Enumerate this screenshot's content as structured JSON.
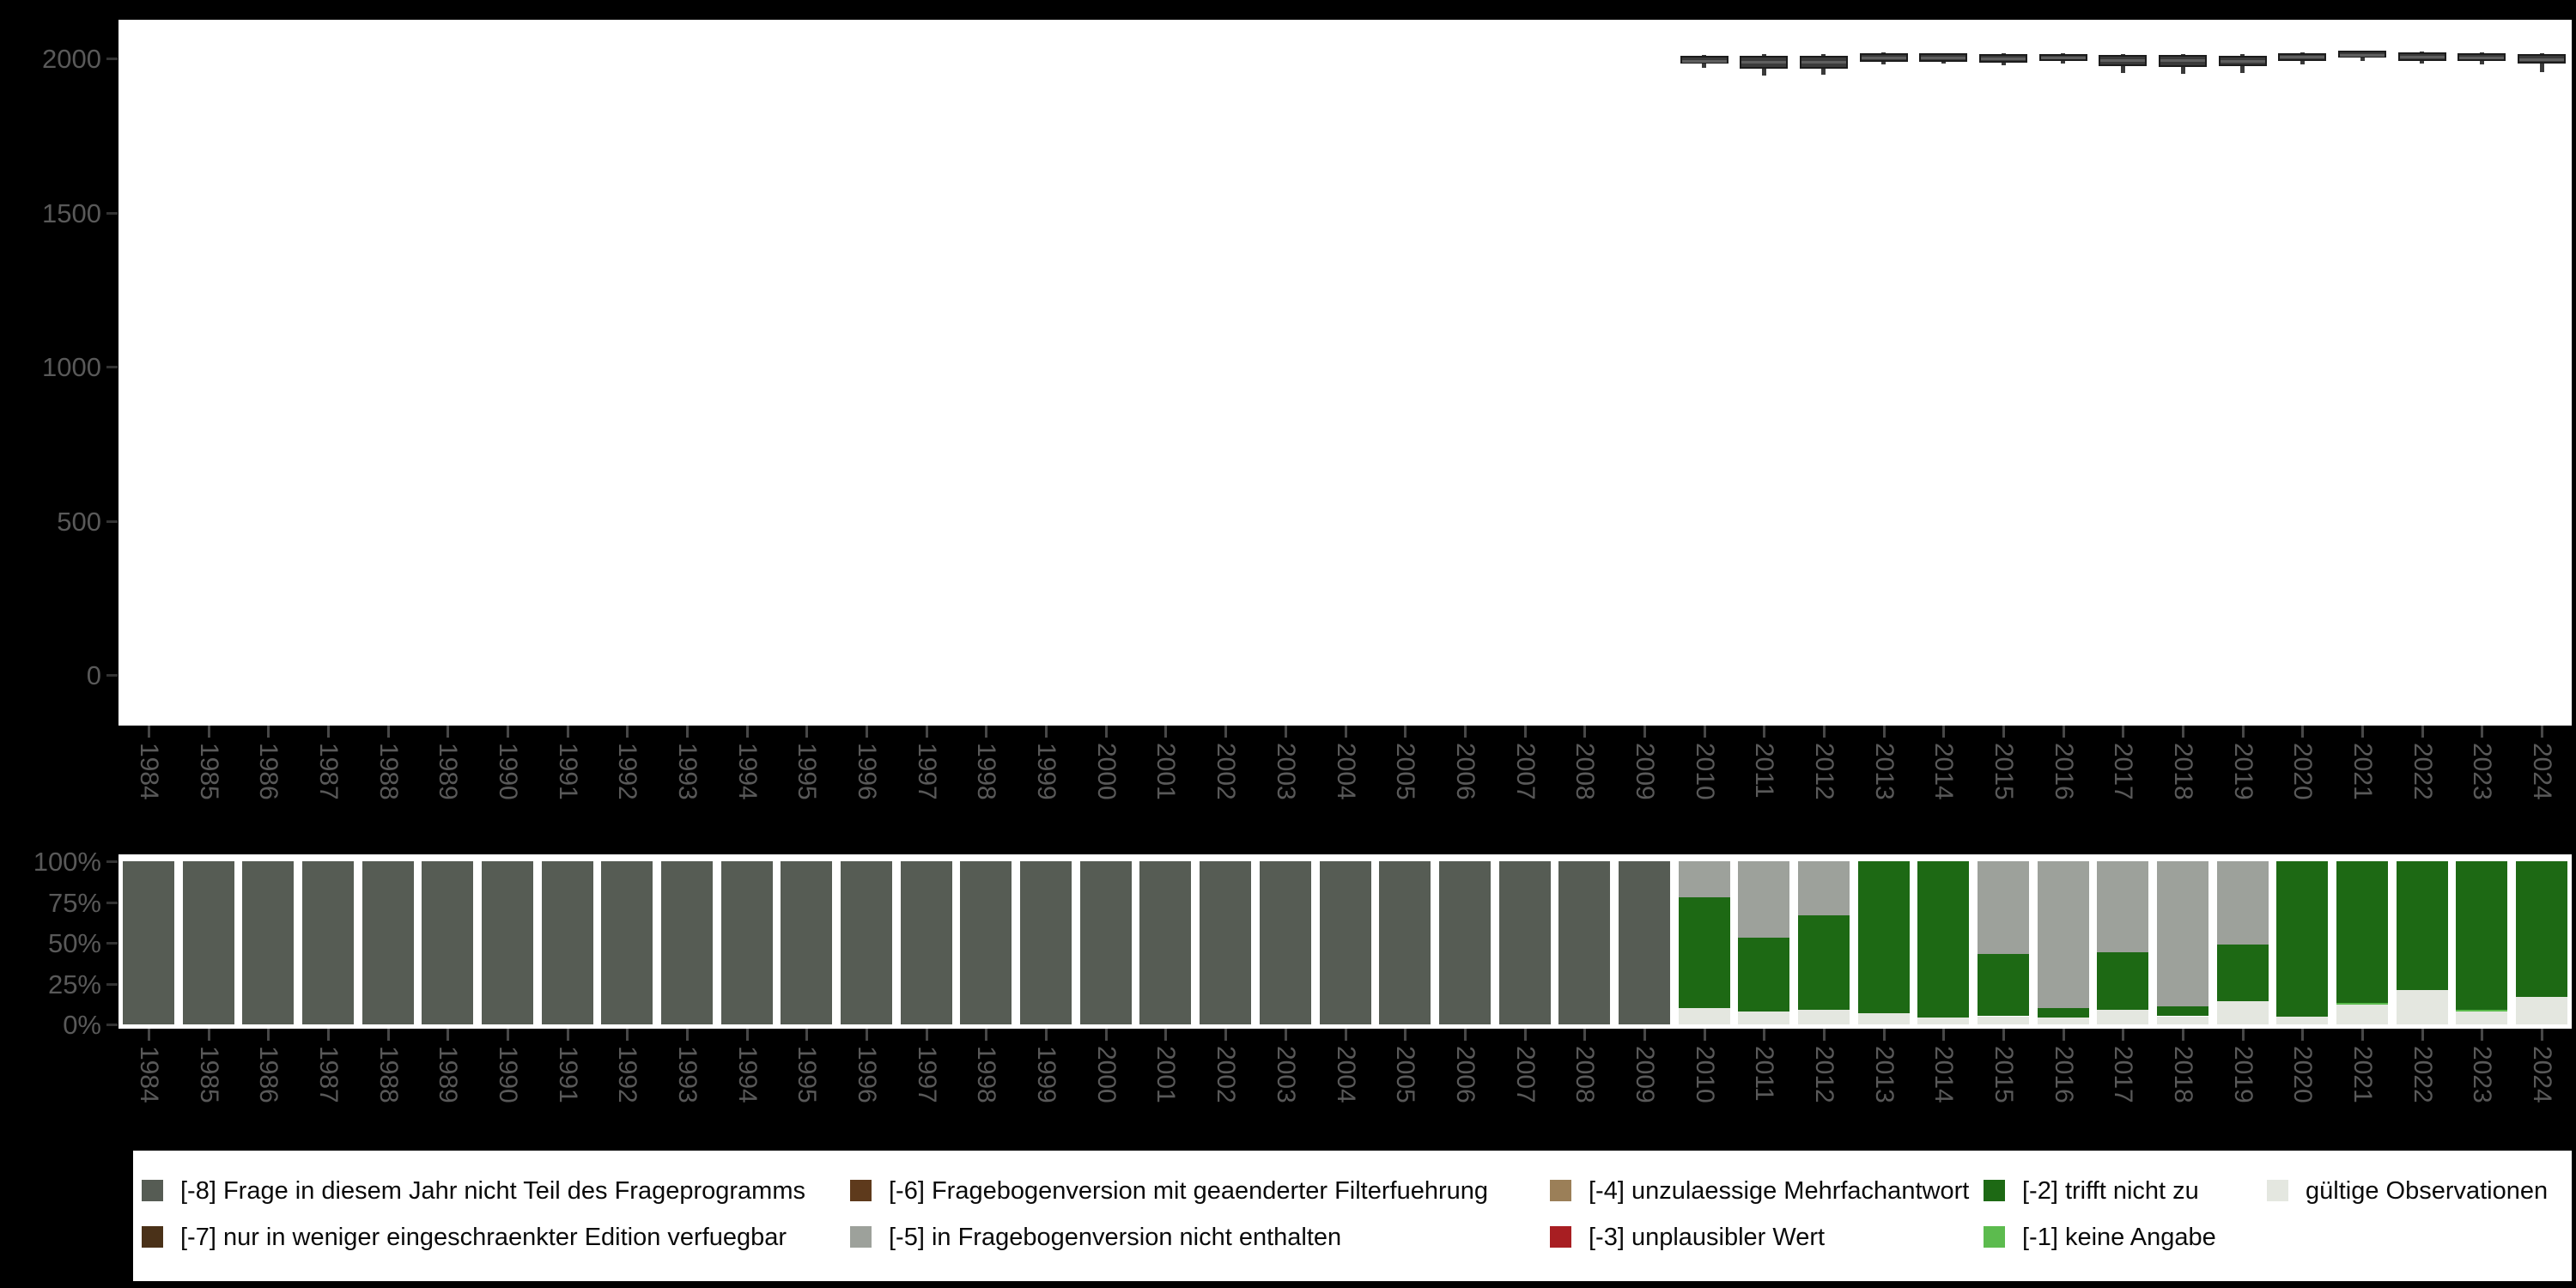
{
  "colors": {
    "background": "#000000",
    "panel": "#ffffff",
    "axis_text": "#595959",
    "tick_mark": "#474747",
    "boxplot_fill": "#3a3a3a",
    "boxplot_border": "#1c1c1c",
    "boxplot_median": "#5f5f5f",
    "m8": "#565c54",
    "m7": "#4a3118",
    "m6": "#5e3a1c",
    "m5": "#9da19b",
    "m4": "#9b7f58",
    "m3": "#a81e22",
    "m2": "#1d6914",
    "m1": "#5cbb4e",
    "gueltige": "#e4e7e0"
  },
  "chart_data": [
    {
      "type": "boxplot",
      "title": "",
      "xlabel": "",
      "ylabel": "",
      "ylim": [
        -165,
        2125
      ],
      "grid": false,
      "ytick_labels": [
        "0",
        "500",
        "1000",
        "1500",
        "2000"
      ],
      "ytick_values": [
        0,
        500,
        1000,
        1500,
        2000
      ],
      "categories": [
        1984,
        1985,
        1986,
        1987,
        1988,
        1989,
        1990,
        1991,
        1992,
        1993,
        1994,
        1995,
        1996,
        1997,
        1998,
        1999,
        2000,
        2001,
        2002,
        2003,
        2004,
        2005,
        2006,
        2007,
        2008,
        2009,
        2010,
        2011,
        2012,
        2013,
        2014,
        2015,
        2016,
        2017,
        2018,
        2019,
        2020,
        2021,
        2022,
        2023,
        2024
      ],
      "boxplots": [
        {
          "year": 2010,
          "low": 1970,
          "q1": 1982,
          "median": 1993,
          "q3": 2008,
          "high": 2012
        },
        {
          "year": 2011,
          "low": 1944,
          "q1": 1966,
          "median": 1988,
          "q3": 2008,
          "high": 2015
        },
        {
          "year": 2012,
          "low": 1946,
          "q1": 1966,
          "median": 1989,
          "q3": 2008,
          "high": 2013
        },
        {
          "year": 2013,
          "low": 1980,
          "q1": 1990,
          "median": 2004,
          "q3": 2017,
          "high": 2019
        },
        {
          "year": 2014,
          "low": 1982,
          "q1": 1990,
          "median": 2003,
          "q3": 2016,
          "high": 2018
        },
        {
          "year": 2015,
          "low": 1979,
          "q1": 1987,
          "median": 2001,
          "q3": 2015,
          "high": 2017
        },
        {
          "year": 2016,
          "low": 1983,
          "q1": 1991,
          "median": 2003,
          "q3": 2015,
          "high": 2017
        },
        {
          "year": 2017,
          "low": 1952,
          "q1": 1976,
          "median": 1995,
          "q3": 2011,
          "high": 2013
        },
        {
          "year": 2018,
          "low": 1950,
          "q1": 1972,
          "median": 1994,
          "q3": 2012,
          "high": 2014
        },
        {
          "year": 2019,
          "low": 1952,
          "q1": 1976,
          "median": 1992,
          "q3": 2008,
          "high": 2014
        },
        {
          "year": 2020,
          "low": 1980,
          "q1": 1992,
          "median": 2005,
          "q3": 2018,
          "high": 2020
        },
        {
          "year": 2021,
          "low": 1992,
          "q1": 2002,
          "median": 2012,
          "q3": 2024,
          "high": 2026
        },
        {
          "year": 2022,
          "low": 1982,
          "q1": 1993,
          "median": 2006,
          "q3": 2019,
          "high": 2021
        },
        {
          "year": 2023,
          "low": 1980,
          "q1": 1991,
          "median": 2004,
          "q3": 2017,
          "high": 2019
        },
        {
          "year": 2024,
          "low": 1955,
          "q1": 1983,
          "median": 1998,
          "q3": 2014,
          "high": 2016
        }
      ]
    },
    {
      "type": "bar",
      "subtype": "stacked-100-percent",
      "title": "",
      "xlabel": "",
      "ylabel": "",
      "grid": false,
      "ytick_labels": [
        "0%",
        "25%",
        "50%",
        "75%",
        "100%"
      ],
      "ytick_values": [
        0,
        25,
        50,
        75,
        100
      ],
      "categories": [
        1984,
        1985,
        1986,
        1987,
        1988,
        1989,
        1990,
        1991,
        1992,
        1993,
        1994,
        1995,
        1996,
        1997,
        1998,
        1999,
        2000,
        2001,
        2002,
        2003,
        2004,
        2005,
        2006,
        2007,
        2008,
        2009,
        2010,
        2011,
        2012,
        2013,
        2014,
        2015,
        2016,
        2017,
        2018,
        2019,
        2020,
        2021,
        2022,
        2023,
        2024
      ],
      "stack_order_bottom_to_top": [
        "gueltige",
        "m1",
        "m2",
        "m5",
        "m8"
      ],
      "bars": [
        {
          "year": 1984,
          "gueltige": 0,
          "m1": 0,
          "m2": 0,
          "m5": 0,
          "m8": 100
        },
        {
          "year": 1985,
          "gueltige": 0,
          "m1": 0,
          "m2": 0,
          "m5": 0,
          "m8": 100
        },
        {
          "year": 1986,
          "gueltige": 0,
          "m1": 0,
          "m2": 0,
          "m5": 0,
          "m8": 100
        },
        {
          "year": 1987,
          "gueltige": 0,
          "m1": 0,
          "m2": 0,
          "m5": 0,
          "m8": 100
        },
        {
          "year": 1988,
          "gueltige": 0,
          "m1": 0,
          "m2": 0,
          "m5": 0,
          "m8": 100
        },
        {
          "year": 1989,
          "gueltige": 0,
          "m1": 0,
          "m2": 0,
          "m5": 0,
          "m8": 100
        },
        {
          "year": 1990,
          "gueltige": 0,
          "m1": 0,
          "m2": 0,
          "m5": 0,
          "m8": 100
        },
        {
          "year": 1991,
          "gueltige": 0,
          "m1": 0,
          "m2": 0,
          "m5": 0,
          "m8": 100
        },
        {
          "year": 1992,
          "gueltige": 0,
          "m1": 0,
          "m2": 0,
          "m5": 0,
          "m8": 100
        },
        {
          "year": 1993,
          "gueltige": 0,
          "m1": 0,
          "m2": 0,
          "m5": 0,
          "m8": 100
        },
        {
          "year": 1994,
          "gueltige": 0,
          "m1": 0,
          "m2": 0,
          "m5": 0,
          "m8": 100
        },
        {
          "year": 1995,
          "gueltige": 0,
          "m1": 0,
          "m2": 0,
          "m5": 0,
          "m8": 100
        },
        {
          "year": 1996,
          "gueltige": 0,
          "m1": 0,
          "m2": 0,
          "m5": 0,
          "m8": 100
        },
        {
          "year": 1997,
          "gueltige": 0,
          "m1": 0,
          "m2": 0,
          "m5": 0,
          "m8": 100
        },
        {
          "year": 1998,
          "gueltige": 0,
          "m1": 0,
          "m2": 0,
          "m5": 0,
          "m8": 100
        },
        {
          "year": 1999,
          "gueltige": 0,
          "m1": 0,
          "m2": 0,
          "m5": 0,
          "m8": 100
        },
        {
          "year": 2000,
          "gueltige": 0,
          "m1": 0,
          "m2": 0,
          "m5": 0,
          "m8": 100
        },
        {
          "year": 2001,
          "gueltige": 0,
          "m1": 0,
          "m2": 0,
          "m5": 0,
          "m8": 100
        },
        {
          "year": 2002,
          "gueltige": 0,
          "m1": 0,
          "m2": 0,
          "m5": 0,
          "m8": 100
        },
        {
          "year": 2003,
          "gueltige": 0,
          "m1": 0,
          "m2": 0,
          "m5": 0,
          "m8": 100
        },
        {
          "year": 2004,
          "gueltige": 0,
          "m1": 0,
          "m2": 0,
          "m5": 0,
          "m8": 100
        },
        {
          "year": 2005,
          "gueltige": 0,
          "m1": 0,
          "m2": 0,
          "m5": 0,
          "m8": 100
        },
        {
          "year": 2006,
          "gueltige": 0,
          "m1": 0,
          "m2": 0,
          "m5": 0,
          "m8": 100
        },
        {
          "year": 2007,
          "gueltige": 0,
          "m1": 0,
          "m2": 0,
          "m5": 0,
          "m8": 100
        },
        {
          "year": 2008,
          "gueltige": 0,
          "m1": 0,
          "m2": 0,
          "m5": 0,
          "m8": 100
        },
        {
          "year": 2009,
          "gueltige": 0,
          "m1": 0,
          "m2": 0,
          "m5": 0,
          "m8": 100
        },
        {
          "year": 2010,
          "gueltige": 10,
          "m1": 0,
          "m2": 68,
          "m5": 22,
          "m8": 0
        },
        {
          "year": 2011,
          "gueltige": 8,
          "m1": 0,
          "m2": 45,
          "m5": 47,
          "m8": 0
        },
        {
          "year": 2012,
          "gueltige": 9,
          "m1": 0,
          "m2": 58,
          "m5": 33,
          "m8": 0
        },
        {
          "year": 2013,
          "gueltige": 7,
          "m1": 0,
          "m2": 93,
          "m5": 0,
          "m8": 0
        },
        {
          "year": 2014,
          "gueltige": 4,
          "m1": 0,
          "m2": 96,
          "m5": 0,
          "m8": 0
        },
        {
          "year": 2015,
          "gueltige": 5,
          "m1": 0,
          "m2": 38,
          "m5": 57,
          "m8": 0
        },
        {
          "year": 2016,
          "gueltige": 4,
          "m1": 0,
          "m2": 6,
          "m5": 90,
          "m8": 0
        },
        {
          "year": 2017,
          "gueltige": 9,
          "m1": 0,
          "m2": 35,
          "m5": 56,
          "m8": 0
        },
        {
          "year": 2018,
          "gueltige": 5,
          "m1": 0,
          "m2": 6,
          "m5": 89,
          "m8": 0
        },
        {
          "year": 2019,
          "gueltige": 14,
          "m1": 0,
          "m2": 35,
          "m5": 51,
          "m8": 0
        },
        {
          "year": 2020,
          "gueltige": 5,
          "m1": 0,
          "m2": 95,
          "m5": 0,
          "m8": 0
        },
        {
          "year": 2021,
          "gueltige": 12,
          "m1": 1,
          "m2": 87,
          "m5": 0,
          "m8": 0
        },
        {
          "year": 2022,
          "gueltige": 21,
          "m1": 0,
          "m2": 79,
          "m5": 0,
          "m8": 0
        },
        {
          "year": 2023,
          "gueltige": 8,
          "m1": 1,
          "m2": 91,
          "m5": 0,
          "m8": 0
        },
        {
          "year": 2024,
          "gueltige": 17,
          "m1": 0,
          "m2": 83,
          "m5": 0,
          "m8": 0
        }
      ]
    }
  ],
  "legend": {
    "rows": [
      [
        {
          "key": "m8",
          "label": "[-8] Frage in diesem Jahr nicht Teil des Frageprogramms"
        },
        {
          "key": "m6",
          "label": "[-6] Fragebogenversion mit geaenderter Filterfuehrung"
        },
        {
          "key": "m4",
          "label": "[-4] unzulaessige Mehrfachantwort"
        },
        {
          "key": "m2",
          "label": "[-2] trifft nicht zu"
        },
        {
          "key": "gueltige",
          "label": "gültige Observationen"
        }
      ],
      [
        {
          "key": "m7",
          "label": "[-7] nur in weniger eingeschraenkter Edition verfuegbar"
        },
        {
          "key": "m5",
          "label": "[-5] in Fragebogenversion nicht enthalten"
        },
        {
          "key": "m3",
          "label": "[-3] unplausibler Wert"
        },
        {
          "key": "m1",
          "label": "[-1] keine Angabe"
        }
      ]
    ]
  }
}
